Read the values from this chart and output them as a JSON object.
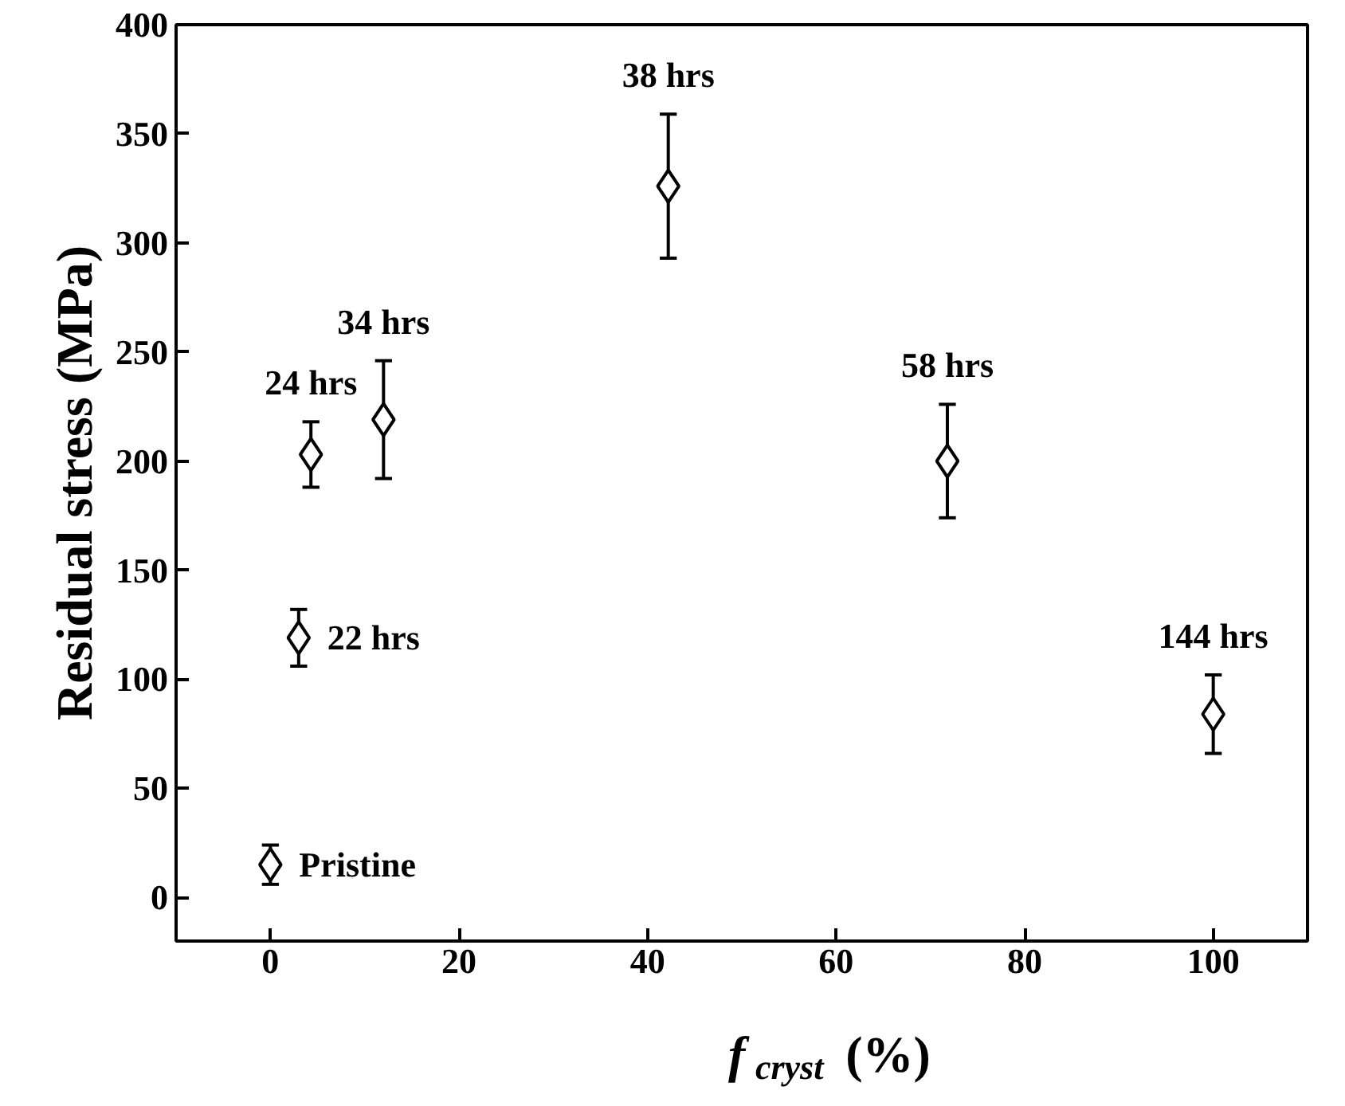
{
  "chart_data": {
    "type": "scatter",
    "xlabel": "f$_{cryst}$ (%)",
    "ylabel": "Residual stress (MPa)",
    "x": [
      0,
      3,
      4.3,
      12,
      42.2,
      71.8,
      100
    ],
    "values": [
      15,
      119,
      203,
      219,
      326,
      200,
      84
    ],
    "errors": [
      9,
      13,
      15,
      27,
      33,
      26,
      18
    ],
    "color": "#000000",
    "marker": "diamond",
    "xlim": [
      -10,
      110
    ],
    "ylim": [
      -20,
      400
    ],
    "xticks": [
      0,
      20,
      40,
      60,
      80,
      100
    ],
    "yticks": [
      0,
      50,
      100,
      150,
      200,
      250,
      300,
      350,
      400
    ],
    "grid": false,
    "annotations": [
      {
        "text": "Pristine",
        "x": 0,
        "y": 15
      },
      {
        "text": "22 hrs",
        "x": 3,
        "y": 119
      },
      {
        "text": "24 hrs",
        "x": 4.3,
        "y": 203
      },
      {
        "text": "34 hrs",
        "x": 12,
        "y": 219
      },
      {
        "text": "38 hrs",
        "x": 42.2,
        "y": 326
      },
      {
        "text": "58 hrs",
        "x": 71.8,
        "y": 200
      },
      {
        "text": "144 hrs",
        "x": 100,
        "y": 84
      }
    ]
  }
}
